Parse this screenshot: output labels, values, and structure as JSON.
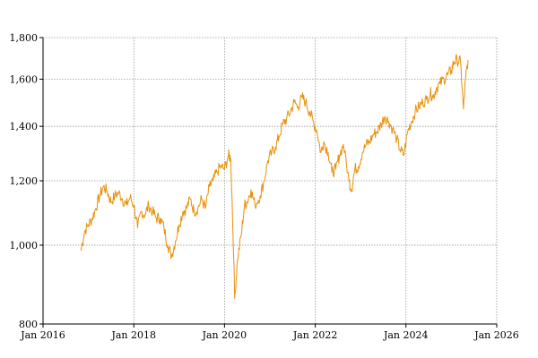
{
  "chart_data": {
    "type": "line",
    "title": "",
    "xlabel": "",
    "ylabel": "",
    "y_scale": "log",
    "ylim": [
      800,
      1800
    ],
    "xlim": [
      "2016-01-01",
      "2026-01-01"
    ],
    "y_ticks": [
      {
        "value": 800,
        "label": "800"
      },
      {
        "value": 1000,
        "label": "1,000"
      },
      {
        "value": 1200,
        "label": "1,200"
      },
      {
        "value": 1400,
        "label": "1,400"
      },
      {
        "value": 1600,
        "label": "1,600"
      },
      {
        "value": 1800,
        "label": "1,800"
      }
    ],
    "x_ticks": [
      {
        "value": "2016-01-01",
        "label": "Jan 2016"
      },
      {
        "value": "2018-01-01",
        "label": "Jan 2018"
      },
      {
        "value": "2020-01-01",
        "label": "Jan 2020"
      },
      {
        "value": "2022-01-01",
        "label": "Jan 2022"
      },
      {
        "value": "2024-01-01",
        "label": "Jan 2024"
      },
      {
        "value": "2026-01-01",
        "label": "Jan 2026"
      }
    ],
    "grid": true,
    "line_color": "#E8900A",
    "series": [
      {
        "x": [
          "2016-11-01",
          "2016-12-01",
          "2017-01-01",
          "2017-02-01",
          "2017-03-01",
          "2017-04-01",
          "2017-05-01",
          "2017-06-01",
          "2017-07-01",
          "2017-08-01",
          "2017-09-01",
          "2017-10-01",
          "2017-11-01",
          "2017-12-01",
          "2018-01-01",
          "2018-02-01",
          "2018-03-01",
          "2018-04-01",
          "2018-05-01",
          "2018-06-01",
          "2018-07-01",
          "2018-08-01",
          "2018-09-01",
          "2018-10-01",
          "2018-11-01",
          "2018-12-01",
          "2019-01-01",
          "2019-02-01",
          "2019-03-01",
          "2019-04-01",
          "2019-05-01",
          "2019-06-01",
          "2019-07-01",
          "2019-08-01",
          "2019-09-01",
          "2019-10-01",
          "2019-11-01",
          "2019-12-01",
          "2020-01-01",
          "2020-02-01",
          "2020-02-20",
          "2020-03-23",
          "2020-04-15",
          "2020-05-15",
          "2020-06-10",
          "2020-07-01",
          "2020-08-01",
          "2020-09-01",
          "2020-10-15",
          "2020-11-15",
          "2020-12-15",
          "2021-01-15",
          "2021-02-15",
          "2021-03-15",
          "2021-04-15",
          "2021-05-15",
          "2021-06-15",
          "2021-07-15",
          "2021-08-15",
          "2021-09-15",
          "2021-10-15",
          "2021-11-15",
          "2021-12-15",
          "2022-01-15",
          "2022-02-15",
          "2022-03-10",
          "2022-04-15",
          "2022-05-15",
          "2022-06-15",
          "2022-07-15",
          "2022-08-15",
          "2022-09-30",
          "2022-10-20",
          "2022-11-15",
          "2022-12-15",
          "2023-01-15",
          "2023-02-15",
          "2023-03-15",
          "2023-04-15",
          "2023-05-15",
          "2023-06-15",
          "2023-07-15",
          "2023-08-15",
          "2023-09-15",
          "2023-10-20",
          "2023-11-15",
          "2023-12-15",
          "2024-01-15",
          "2024-02-15",
          "2024-03-15",
          "2024-04-15",
          "2024-05-15",
          "2024-06-15",
          "2024-07-15",
          "2024-08-05",
          "2024-09-01",
          "2024-10-01",
          "2024-11-01",
          "2024-12-01",
          "2025-01-01",
          "2025-01-20",
          "2025-02-15",
          "2025-03-15",
          "2025-04-08",
          "2025-04-25",
          "2025-05-15"
        ],
        "values": [
          985,
          1040,
          1060,
          1080,
          1110,
          1150,
          1180,
          1165,
          1130,
          1150,
          1160,
          1140,
          1120,
          1145,
          1120,
          1050,
          1100,
          1090,
          1120,
          1100,
          1080,
          1080,
          1050,
          1000,
          970,
          1010,
          1060,
          1100,
          1110,
          1140,
          1100,
          1110,
          1140,
          1110,
          1180,
          1200,
          1230,
          1250,
          1240,
          1290,
          1280,
          860,
          960,
          1030,
          1120,
          1130,
          1170,
          1120,
          1150,
          1200,
          1270,
          1300,
          1320,
          1360,
          1410,
          1430,
          1460,
          1500,
          1480,
          1520,
          1500,
          1460,
          1420,
          1380,
          1300,
          1340,
          1300,
          1230,
          1240,
          1290,
          1330,
          1200,
          1170,
          1240,
          1250,
          1300,
          1330,
          1340,
          1370,
          1380,
          1410,
          1440,
          1420,
          1390,
          1350,
          1310,
          1290,
          1380,
          1420,
          1460,
          1480,
          1500,
          1510,
          1540,
          1520,
          1560,
          1580,
          1600,
          1620,
          1640,
          1680,
          1690,
          1680,
          1470,
          1600,
          1690
        ]
      }
    ]
  }
}
